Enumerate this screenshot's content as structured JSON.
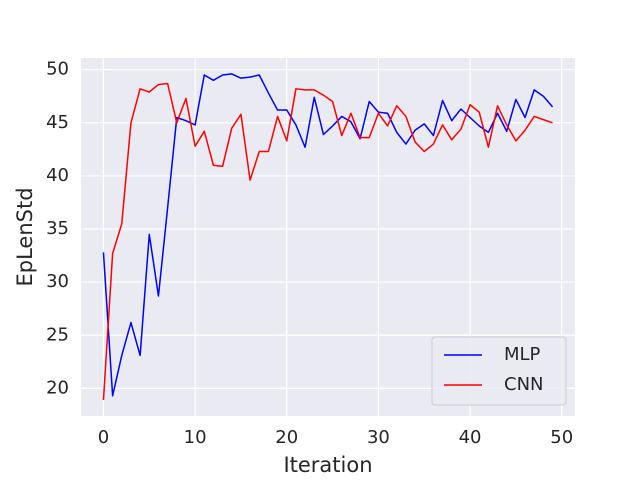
{
  "chart_data": {
    "type": "line",
    "xlabel": "Iteration",
    "ylabel": "EpLenStd",
    "x": [
      0,
      1,
      2,
      3,
      4,
      5,
      6,
      7,
      8,
      9,
      10,
      11,
      12,
      13,
      14,
      15,
      16,
      17,
      18,
      19,
      20,
      21,
      22,
      23,
      24,
      25,
      26,
      27,
      28,
      29,
      30,
      31,
      32,
      33,
      34,
      35,
      36,
      37,
      38,
      39,
      40,
      41,
      42,
      43,
      44,
      45,
      46,
      47,
      48,
      49
    ],
    "series": [
      {
        "name": "MLP",
        "color": "#0000ff",
        "values": [
          32.8,
          19.3,
          23.1,
          26.2,
          23.1,
          34.5,
          28.7,
          37,
          45.5,
          45.2,
          44.8,
          49.5,
          49,
          49.5,
          49.6,
          49.2,
          49.3,
          49.5,
          47.8,
          46.2,
          46.2,
          44.8,
          42.7,
          47.4,
          43.9,
          44.7,
          45.6,
          45.1,
          43.5,
          47,
          46,
          45.9,
          44.1,
          43,
          44.3,
          44.9,
          43.8,
          47.1,
          45.2,
          46.3,
          45.5,
          44.7,
          44.1,
          45.9,
          44.2,
          47.2,
          45.5,
          48.1,
          47.5,
          46.5
        ]
      },
      {
        "name": "CNN",
        "color": "#ff0000",
        "values": [
          18.9,
          32.7,
          35.5,
          45,
          48.2,
          47.9,
          48.6,
          48.7,
          45,
          47.3,
          42.8,
          44.2,
          41,
          40.9,
          44.5,
          45.8,
          39.6,
          42.3,
          42.3,
          45.6,
          43.3,
          48.2,
          48.1,
          48.1,
          47.6,
          47,
          43.8,
          45.9,
          43.6,
          43.6,
          45.9,
          44.7,
          46.6,
          45.6,
          43.2,
          42.3,
          43,
          44.8,
          43.4,
          44.4,
          46.7,
          46,
          42.7,
          46.6,
          44.8,
          43.3,
          44.3,
          45.6,
          45.3,
          45
        ]
      }
    ],
    "xlim": [
      -2.45,
      51.45
    ],
    "xticks": [
      0,
      10,
      20,
      30,
      40,
      50
    ],
    "ylim": [
      17.4,
      51.1
    ],
    "yticks": [
      20,
      25,
      30,
      35,
      40,
      45,
      50
    ],
    "grid": true,
    "legend": "lower right"
  }
}
